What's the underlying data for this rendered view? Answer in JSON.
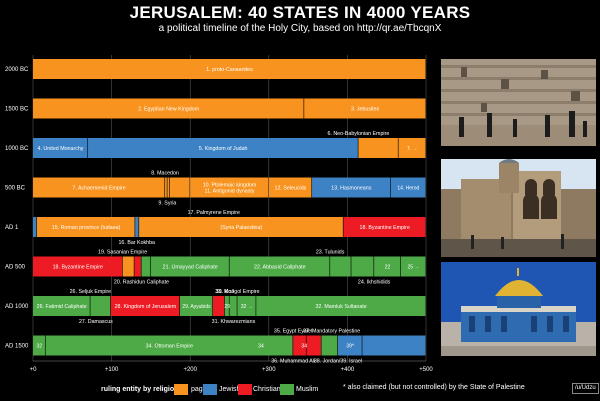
{
  "title": "JERUSALEM: 40 STATES IN 4000 YEARS",
  "subtitle": "a political timeline of the Holy City, based on http://qr.ae/TbcqnX",
  "colors": {
    "pagan": "#f7931e",
    "jewish": "#3d82c4",
    "christian": "#ed1c24",
    "muslim": "#4daa47"
  },
  "legend": {
    "label": "ruling entity by religion:",
    "items": [
      {
        "key": "pagan",
        "label": "pagan"
      },
      {
        "key": "jewish",
        "label": "Jewish"
      },
      {
        "key": "christian",
        "label": "Christian"
      },
      {
        "key": "muslim",
        "label": "Muslim"
      }
    ],
    "footnote": "* also claimed (but not controlled) by the State of Palestine",
    "credit": "/u/Udzu"
  },
  "photos": [
    {
      "name": "western-wall-photo",
      "icon": "western-wall"
    },
    {
      "name": "church-photo",
      "icon": "church-of-holy-sepulchre"
    },
    {
      "name": "dome-of-the-rock-photo",
      "icon": "dome-of-the-rock"
    }
  ],
  "chart_data": {
    "type": "bar",
    "orientation": "horizontal-timeline",
    "x_ticks": [
      "+0",
      "+100",
      "+200",
      "+300",
      "+400",
      "+500"
    ],
    "xlim": [
      0,
      500
    ],
    "grid": true,
    "rows": [
      {
        "label": "2000 BC",
        "start": -2000,
        "segments": [
          {
            "start": 0,
            "end": 500,
            "religion": "pagan",
            "label": "1. proto-Canaanites"
          }
        ]
      },
      {
        "label": "1500 BC",
        "start": -1500,
        "segments": [
          {
            "start": 0,
            "end": 345,
            "religion": "pagan",
            "label": "2. Egyptian New Kingdom"
          },
          {
            "start": 345,
            "end": 500,
            "religion": "pagan",
            "label": "3. Jebusites"
          }
        ]
      },
      {
        "label": "1000 BC",
        "start": -1000,
        "segments": [
          {
            "start": 0,
            "end": 70,
            "religion": "jewish",
            "label": "4. United Monarchy"
          },
          {
            "start": 70,
            "end": 414,
            "religion": "jewish",
            "label": "5. Kingdom of Judah"
          },
          {
            "start": 414,
            "end": 465,
            "religion": "pagan",
            "label": ""
          },
          {
            "start": 465,
            "end": 500,
            "religion": "pagan",
            "label": "7. →"
          }
        ]
      },
      {
        "label": "500 BC",
        "start": -500,
        "segments": [
          {
            "start": 0,
            "end": 168,
            "religion": "pagan",
            "label": "7. Achaemenid Empire"
          },
          {
            "start": 168,
            "end": 171,
            "religion": "pagan",
            "label": ""
          },
          {
            "start": 171,
            "end": 174,
            "religion": "pagan",
            "label": ""
          },
          {
            "start": 174,
            "end": 200,
            "religion": "pagan",
            "label": ""
          },
          {
            "start": 200,
            "end": 300,
            "religion": "pagan",
            "label": "10. Ptolemaic kingdom / 11. Antigonid dynasty"
          },
          {
            "start": 300,
            "end": 355,
            "religion": "pagan",
            "label": "12. Seleucids"
          },
          {
            "start": 355,
            "end": 455,
            "religion": "jewish",
            "label": "13. Hasmoneans"
          },
          {
            "start": 455,
            "end": 500,
            "religion": "jewish",
            "label": "14. Herod"
          }
        ]
      },
      {
        "label": "AD 1",
        "start": 1,
        "segments": [
          {
            "start": 0,
            "end": 5,
            "religion": "jewish",
            "label": ""
          },
          {
            "start": 5,
            "end": 130,
            "religion": "pagan",
            "label": "15. Roman province (Iudaea)"
          },
          {
            "start": 130,
            "end": 135,
            "religion": "jewish",
            "label": ""
          },
          {
            "start": 135,
            "end": 395,
            "religion": "pagan",
            "label": "(Syria Palaestina)"
          },
          {
            "start": 395,
            "end": 500,
            "religion": "christian",
            "label": "18. Byzantine Empire"
          }
        ]
      },
      {
        "label": "AD 500",
        "start": 500,
        "segments": [
          {
            "start": 0,
            "end": 114,
            "religion": "christian",
            "label": "18. Byzantine Empire"
          },
          {
            "start": 114,
            "end": 129,
            "religion": "pagan",
            "label": ""
          },
          {
            "start": 129,
            "end": 138,
            "religion": "christian",
            "label": ""
          },
          {
            "start": 138,
            "end": 150,
            "religion": "muslim",
            "label": ""
          },
          {
            "start": 150,
            "end": 250,
            "religion": "muslim",
            "label": "21. Umayyad Caliphate"
          },
          {
            "start": 250,
            "end": 378,
            "religion": "muslim",
            "label": "22. Abbasid Caliphate"
          },
          {
            "start": 378,
            "end": 405,
            "religion": "muslim",
            "label": ""
          },
          {
            "start": 405,
            "end": 434,
            "religion": "muslim",
            "label": ""
          },
          {
            "start": 434,
            "end": 468,
            "religion": "muslim",
            "label": "22"
          },
          {
            "start": 468,
            "end": 500,
            "religion": "muslim",
            "label": "25 →"
          }
        ]
      },
      {
        "label": "AD 1000",
        "start": 1000,
        "segments": [
          {
            "start": 0,
            "end": 73,
            "religion": "muslim",
            "label": "26. Fatimid Caliphate"
          },
          {
            "start": 73,
            "end": 99,
            "religion": "muslim",
            "label": ""
          },
          {
            "start": 99,
            "end": 187,
            "religion": "christian",
            "label": "28. Kingdom of Jerusalem"
          },
          {
            "start": 187,
            "end": 229,
            "religion": "muslim",
            "label": "29. Ayyubids"
          },
          {
            "start": 229,
            "end": 244,
            "religion": "christian",
            "label": ""
          },
          {
            "start": 244,
            "end": 250,
            "religion": "muslim",
            "label": "29"
          },
          {
            "start": 250,
            "end": 260,
            "religion": "muslim",
            "label": ""
          },
          {
            "start": 260,
            "end": 284,
            "religion": "muslim",
            "label": "32 →"
          },
          {
            "start": 284,
            "end": 500,
            "religion": "muslim",
            "label": "32. Mamluk Sultanate"
          }
        ]
      },
      {
        "label": "AD 1500",
        "start": 1500,
        "segments": [
          {
            "start": 0,
            "end": 16,
            "religion": "muslim",
            "label": "32"
          },
          {
            "start": 16,
            "end": 331,
            "religion": "muslim",
            "label": "34. Ottoman Empire"
          },
          {
            "start": 331,
            "end": 348,
            "religion": "christian",
            "label": ""
          },
          {
            "start": 348,
            "end": 367,
            "religion": "christian",
            "label": ""
          },
          {
            "start": 367,
            "end": 388,
            "religion": "muslim",
            "label": ""
          },
          {
            "start": 388,
            "end": 419,
            "religion": "jewish",
            "label": "39*"
          },
          {
            "start": 419,
            "end": 500,
            "religion": "jewish",
            "label": ""
          }
        ]
      }
    ],
    "annotations": [
      {
        "row": 2,
        "side": "above",
        "x": 414,
        "text": "6. Neo-Babylonian Empire"
      },
      {
        "row": 3,
        "side": "above",
        "x": 168,
        "text": "8. Macedon"
      },
      {
        "row": 3,
        "side": "below",
        "x": 171,
        "text": "9. Syria"
      },
      {
        "row": 4,
        "side": "above",
        "x": 230,
        "text": "17. Palmyrene Empire"
      },
      {
        "row": 4,
        "side": "below",
        "x": 132,
        "text": "16. Bar Kokhba"
      },
      {
        "row": 5,
        "side": "above",
        "x": 114,
        "text": "19. Sasanian Empire"
      },
      {
        "row": 5,
        "side": "below",
        "x": 138,
        "text": "20. Rashidun Caliphate"
      },
      {
        "row": 5,
        "side": "above",
        "x": 378,
        "text": "23. Tulunids"
      },
      {
        "row": 5,
        "side": "below",
        "x": 434,
        "text": "24. Ikhshidids"
      },
      {
        "row": 6,
        "side": "above",
        "x": 73,
        "text": "26. Seljuk Empire"
      },
      {
        "row": 6,
        "side": "below",
        "x": 80,
        "text": "27. Damascus"
      },
      {
        "row": 6,
        "side": "above",
        "x": 244,
        "text": "30. KoJ"
      },
      {
        "row": 6,
        "side": "below",
        "x": 255,
        "text": "31. Khwarezmians"
      },
      {
        "row": 6,
        "side": "above",
        "x": 260,
        "text": "33. Mongol Empire"
      },
      {
        "row": 7,
        "side": "above",
        "x": 331,
        "text": "35. Egypt Eyalet"
      },
      {
        "row": 7,
        "side": "above",
        "x": 380,
        "text": "37. Mandatory Palestine"
      },
      {
        "row": 7,
        "side": "below",
        "x": 331,
        "text": "36. Muhammad Ali"
      },
      {
        "row": 7,
        "side": "below",
        "x": 388,
        "text": "38. Jordan/39. Israel"
      },
      {
        "row": 7,
        "side": "inside",
        "x": 345,
        "text": "34"
      },
      {
        "row": 7,
        "side": "inside",
        "x": 290,
        "text": "34"
      }
    ]
  }
}
